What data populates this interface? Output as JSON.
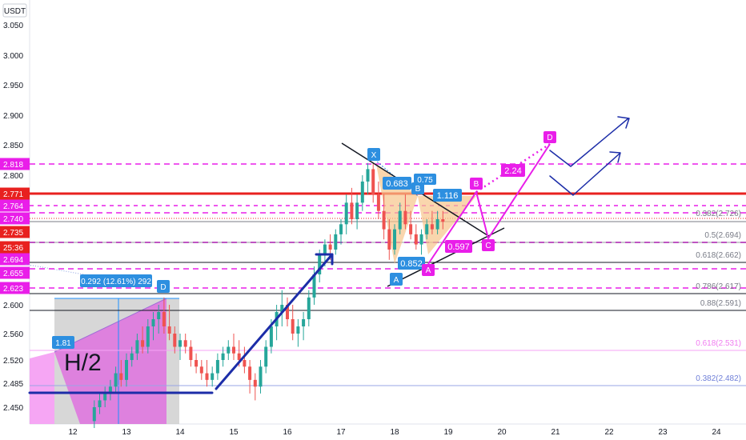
{
  "currency_label": "USDT",
  "price_axis_ticks": [
    "3.050",
    "3.000",
    "2.950",
    "2.900",
    "2.850",
    "2.800",
    "2.600",
    "2.560",
    "2.520",
    "2.485",
    "2.450"
  ],
  "price_tags": [
    {
      "text": "2.818",
      "color": "#e91ee9"
    },
    {
      "text": "2.771",
      "color": "#e8211f"
    },
    {
      "text": "2.764",
      "color": "#e91ee9"
    },
    {
      "text": "2.740",
      "color": "#e91ee9"
    },
    {
      "text": "2.735",
      "color": "#e8211f"
    },
    {
      "text": "25:36",
      "color": "#e8211f"
    },
    {
      "text": "2.694",
      "color": "#e91ee9"
    },
    {
      "text": "2.655",
      "color": "#e91ee9"
    },
    {
      "text": "2.623",
      "color": "#e91ee9"
    }
  ],
  "time_axis_ticks": [
    "12",
    "13",
    "14",
    "15",
    "16",
    "17",
    "18",
    "19",
    "20",
    "21",
    "22",
    "23",
    "24"
  ],
  "fib_levels": [
    {
      "ratio": "0.382",
      "price": "2.726"
    },
    {
      "ratio": "0.5",
      "price": "2.694"
    },
    {
      "ratio": "0.618",
      "price": "2.662"
    },
    {
      "ratio": "0.786",
      "price": "2.617"
    },
    {
      "ratio": "0.88",
      "price": "2.591"
    },
    {
      "ratio": "0.618",
      "price": "2.531"
    },
    {
      "ratio": "0.382",
      "price": "2.482"
    }
  ],
  "annotations": {
    "h2_label": "H/2",
    "measure_label": "0.292 (12.61%) 292",
    "ratio_181": "1.81",
    "ratio_0683": "0.683",
    "ratio_075": "0.75",
    "ratio_1116": "1.116",
    "ratio_0852": "0.852",
    "ratio_0597": "0.597",
    "ratio_224": "2.24"
  },
  "pattern_points": {
    "blue": [
      "X",
      "B",
      "A",
      "D"
    ],
    "magenta": [
      "A",
      "B",
      "C",
      "D"
    ]
  },
  "colors": {
    "magenta": "#e91ee9",
    "red": "#e8211f",
    "navy": "#1c2da8",
    "blue_label": "#2d8fe0",
    "bull_candle": "#26a69a",
    "bear_candle": "#ef5350",
    "triangle_fill": "#f6c48a"
  },
  "chart_data": {
    "type": "candlestick",
    "title": "",
    "x_axis": [
      "12",
      "13",
      "14",
      "15",
      "16",
      "17",
      "18",
      "19",
      "20",
      "21",
      "22",
      "23",
      "24"
    ],
    "ylim": [
      2.44,
      3.06
    ],
    "last_price": 2.735,
    "horizontal_levels": [
      2.818,
      2.771,
      2.764,
      2.74,
      2.735,
      2.694,
      2.655,
      2.623,
      2.591,
      2.531,
      2.482
    ],
    "candles": [
      [
        12.4,
        2.43,
        2.46,
        2.42,
        2.45
      ],
      [
        12.5,
        2.45,
        2.47,
        2.44,
        2.46
      ],
      [
        12.6,
        2.46,
        2.48,
        2.45,
        2.47
      ],
      [
        12.7,
        2.47,
        2.49,
        2.46,
        2.48
      ],
      [
        12.8,
        2.48,
        2.51,
        2.47,
        2.5
      ],
      [
        12.9,
        2.5,
        2.52,
        2.48,
        2.49
      ],
      [
        13.0,
        2.49,
        2.53,
        2.48,
        2.52
      ],
      [
        13.1,
        2.52,
        2.54,
        2.51,
        2.53
      ],
      [
        13.2,
        2.53,
        2.56,
        2.52,
        2.55
      ],
      [
        13.3,
        2.55,
        2.57,
        2.53,
        2.54
      ],
      [
        13.4,
        2.54,
        2.58,
        2.53,
        2.57
      ],
      [
        13.5,
        2.57,
        2.59,
        2.55,
        2.58
      ],
      [
        13.6,
        2.58,
        2.6,
        2.56,
        2.59
      ],
      [
        13.7,
        2.59,
        2.61,
        2.56,
        2.57
      ],
      [
        13.8,
        2.57,
        2.6,
        2.55,
        2.56
      ],
      [
        13.9,
        2.56,
        2.57,
        2.53,
        2.54
      ],
      [
        14.0,
        2.54,
        2.56,
        2.52,
        2.55
      ],
      [
        14.1,
        2.55,
        2.56,
        2.53,
        2.54
      ],
      [
        14.2,
        2.54,
        2.55,
        2.51,
        2.52
      ],
      [
        14.3,
        2.52,
        2.53,
        2.5,
        2.51
      ],
      [
        14.4,
        2.51,
        2.52,
        2.49,
        2.5
      ],
      [
        14.5,
        2.5,
        2.52,
        2.48,
        2.49
      ],
      [
        14.6,
        2.49,
        2.51,
        2.48,
        2.5
      ],
      [
        14.7,
        2.5,
        2.53,
        2.49,
        2.52
      ],
      [
        14.8,
        2.52,
        2.54,
        2.51,
        2.53
      ],
      [
        14.9,
        2.53,
        2.55,
        2.52,
        2.54
      ],
      [
        15.0,
        2.54,
        2.56,
        2.52,
        2.53
      ],
      [
        15.1,
        2.53,
        2.55,
        2.51,
        2.52
      ],
      [
        15.2,
        2.52,
        2.54,
        2.5,
        2.51
      ],
      [
        15.3,
        2.51,
        2.52,
        2.47,
        2.49
      ],
      [
        15.4,
        2.49,
        2.5,
        2.46,
        2.48
      ],
      [
        15.5,
        2.48,
        2.52,
        2.47,
        2.51
      ],
      [
        15.6,
        2.51,
        2.55,
        2.5,
        2.54
      ],
      [
        15.7,
        2.54,
        2.58,
        2.53,
        2.57
      ],
      [
        15.8,
        2.57,
        2.6,
        2.55,
        2.59
      ],
      [
        15.9,
        2.59,
        2.62,
        2.57,
        2.6
      ],
      [
        16.0,
        2.6,
        2.61,
        2.57,
        2.58
      ],
      [
        16.1,
        2.58,
        2.6,
        2.55,
        2.56
      ],
      [
        16.2,
        2.56,
        2.58,
        2.54,
        2.57
      ],
      [
        16.3,
        2.57,
        2.59,
        2.55,
        2.58
      ],
      [
        16.4,
        2.58,
        2.62,
        2.57,
        2.61
      ],
      [
        16.5,
        2.61,
        2.65,
        2.6,
        2.64
      ],
      [
        16.6,
        2.64,
        2.68,
        2.63,
        2.67
      ],
      [
        16.7,
        2.67,
        2.7,
        2.65,
        2.69
      ],
      [
        16.8,
        2.69,
        2.71,
        2.66,
        2.68
      ],
      [
        16.9,
        2.68,
        2.72,
        2.67,
        2.71
      ],
      [
        17.0,
        2.71,
        2.74,
        2.69,
        2.73
      ],
      [
        17.1,
        2.73,
        2.77,
        2.71,
        2.76
      ],
      [
        17.2,
        2.76,
        2.78,
        2.73,
        2.74
      ],
      [
        17.3,
        2.74,
        2.77,
        2.72,
        2.76
      ],
      [
        17.4,
        2.76,
        2.8,
        2.75,
        2.79
      ],
      [
        17.5,
        2.79,
        2.82,
        2.77,
        2.81
      ],
      [
        17.6,
        2.81,
        2.82,
        2.76,
        2.77
      ],
      [
        17.7,
        2.77,
        2.79,
        2.74,
        2.75
      ],
      [
        17.8,
        2.75,
        2.77,
        2.7,
        2.72
      ],
      [
        17.9,
        2.72,
        2.74,
        2.66,
        2.68
      ],
      [
        18.0,
        2.68,
        2.73,
        2.67,
        2.72
      ],
      [
        18.1,
        2.72,
        2.76,
        2.71,
        2.75
      ],
      [
        18.2,
        2.75,
        2.77,
        2.72,
        2.73
      ],
      [
        18.3,
        2.73,
        2.75,
        2.7,
        2.71
      ],
      [
        18.4,
        2.71,
        2.73,
        2.68,
        2.69
      ],
      [
        18.5,
        2.69,
        2.72,
        2.67,
        2.71
      ],
      [
        18.6,
        2.71,
        2.74,
        2.7,
        2.73
      ],
      [
        18.7,
        2.73,
        2.75,
        2.71,
        2.72
      ],
      [
        18.8,
        2.72,
        2.75,
        2.71,
        2.74
      ],
      [
        18.9,
        2.74,
        2.75,
        2.72,
        2.735
      ]
    ]
  }
}
